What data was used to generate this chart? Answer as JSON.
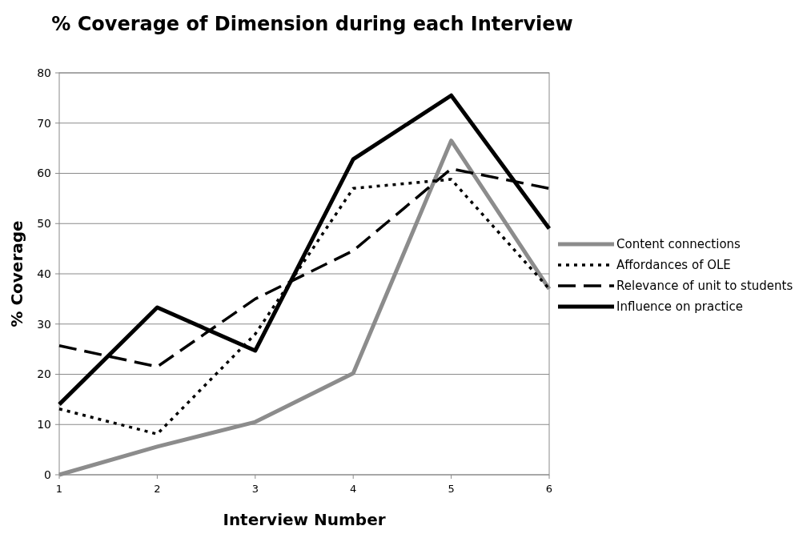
{
  "chart_data": {
    "type": "line",
    "title": "% Coverage of Dimension during each Interview",
    "xlabel": "Interview Number",
    "ylabel": "% Coverage",
    "x": [
      1,
      2,
      3,
      4,
      5,
      6
    ],
    "xlim": [
      1,
      6
    ],
    "xticks": [
      1,
      2,
      3,
      4,
      5,
      6
    ],
    "ylim": [
      0,
      80
    ],
    "yticks": [
      0,
      10,
      20,
      30,
      40,
      50,
      60,
      70,
      80
    ],
    "grid": "y",
    "legend": "right",
    "marker": "none",
    "series": [
      {
        "name": "Content connections",
        "color": "#8c8c8c",
        "line_style": "solid",
        "values": [
          0,
          5.6,
          10.5,
          20.2,
          66.5,
          37
        ]
      },
      {
        "name": "Affordances of OLE",
        "color": "#000000",
        "line_style": "dotted",
        "values": [
          13.1,
          8.1,
          28,
          57,
          58.8,
          37
        ]
      },
      {
        "name": "Relevance of unit to students",
        "color": "#000000",
        "line_style": "dashed",
        "values": [
          25.7,
          21.5,
          35,
          44.6,
          60.9,
          57
        ]
      },
      {
        "name": "Influence on practice",
        "color": "#000000",
        "line_style": "solid",
        "values": [
          14,
          33.3,
          24.7,
          62.8,
          75.5,
          49
        ]
      }
    ]
  }
}
